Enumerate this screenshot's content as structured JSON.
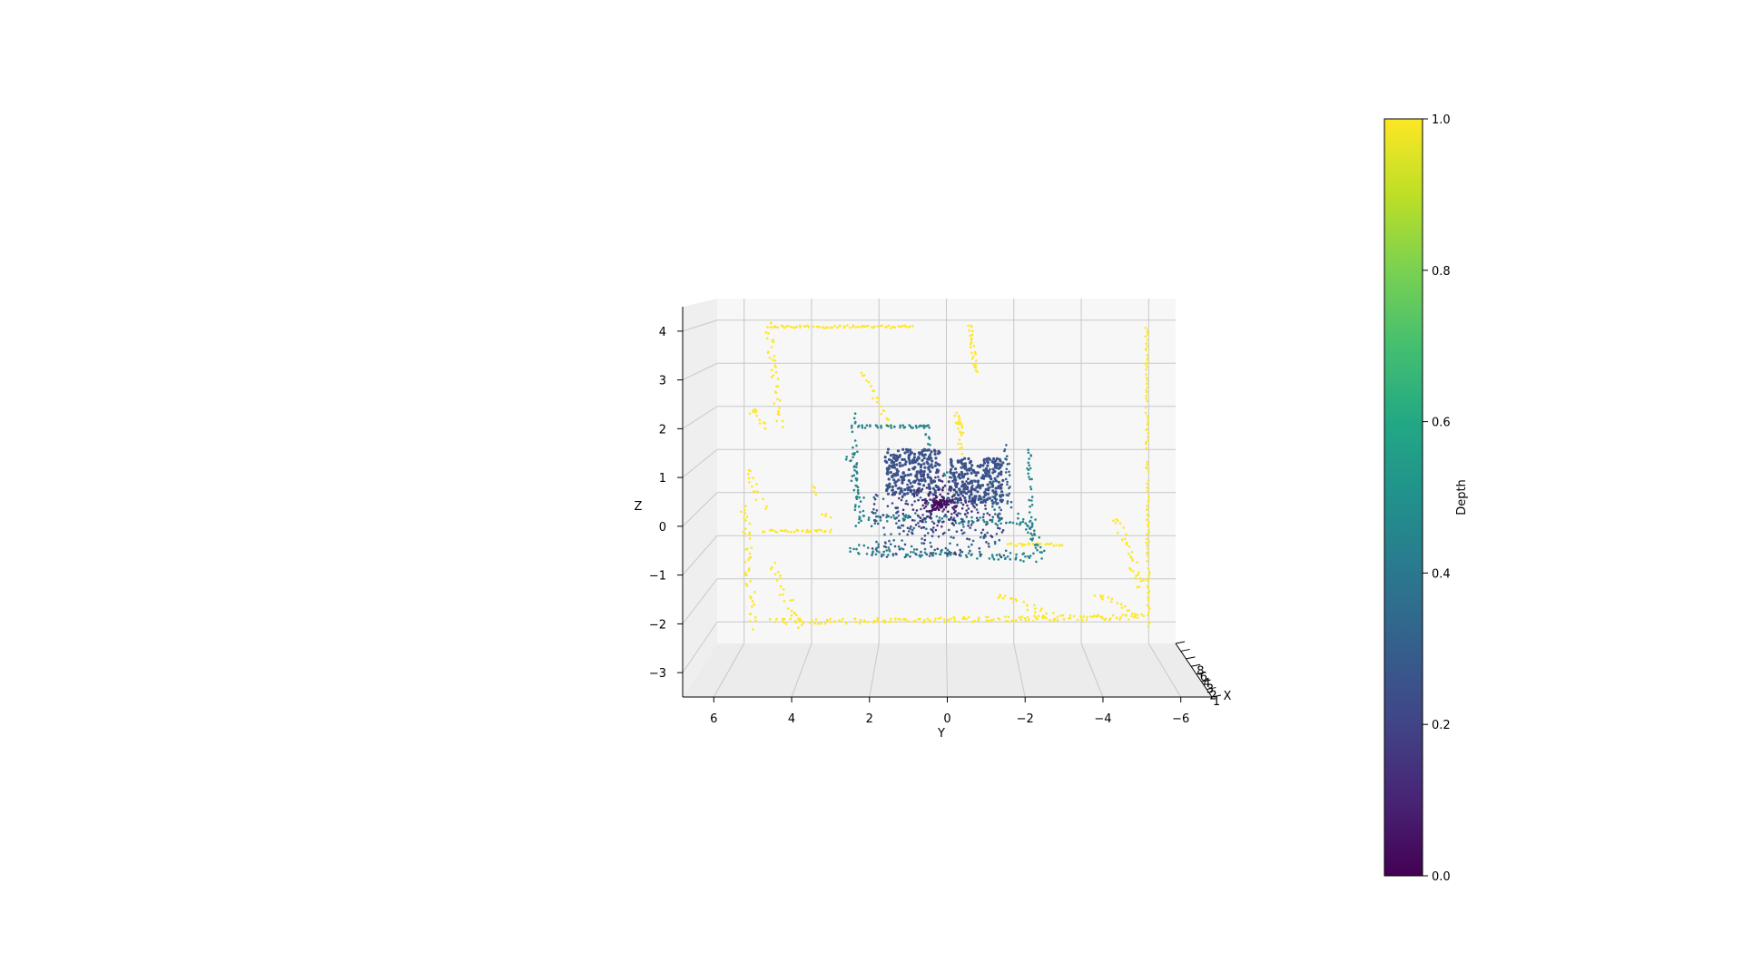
{
  "chart_data": {
    "type": "scatter",
    "projection": "3d",
    "title": "",
    "xlabel": "X",
    "ylabel": "Y",
    "zlabel": "Z",
    "y_ticks": [
      "6",
      "4",
      "2",
      "0",
      "−2",
      "−4",
      "−6"
    ],
    "z_ticks": [
      "4",
      "3",
      "2",
      "1",
      "0",
      "−1",
      "−2",
      "−3"
    ],
    "x_ticks": [
      "8",
      "6",
      "4",
      "3",
      "2",
      "1"
    ],
    "ylim": [
      6.8,
      -6.8
    ],
    "zlim": [
      -3.5,
      4.5
    ],
    "grid": true,
    "colormap": "viridis",
    "colorbar": {
      "label": "Depth",
      "range": [
        0.0,
        1.0
      ],
      "ticks": [
        "0.0",
        "0.2",
        "0.4",
        "0.6",
        "0.8",
        "1.0"
      ]
    },
    "clusters": [
      {
        "depth": 1.0,
        "description": "far wall outline",
        "y_range": [
          -5.4,
          5.3
        ],
        "z_range": [
          -2.2,
          4.0
        ]
      },
      {
        "depth": 0.45,
        "description": "middle frame",
        "y_range": [
          -2.8,
          2.6
        ],
        "z_range": [
          -0.7,
          2.3
        ]
      },
      {
        "depth": 0.25,
        "description": "near boxes",
        "y_range": [
          -1.7,
          1.7
        ],
        "z_range": [
          -0.4,
          1.7
        ]
      },
      {
        "depth": 0.05,
        "description": "center point",
        "y_range": [
          -0.8,
          0.8
        ],
        "z_range": [
          -0.3,
          1.0
        ]
      }
    ]
  },
  "colors": {
    "pane": "#f7f7f7",
    "grid": "#c8c8c8",
    "axis": "#000000"
  }
}
